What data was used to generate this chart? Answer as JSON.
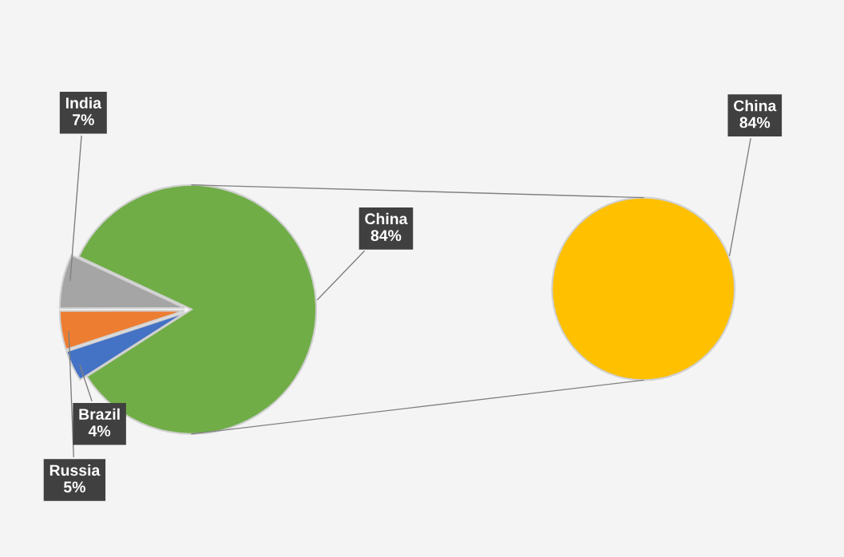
{
  "chart_data": [
    {
      "type": "pie",
      "categories": [
        "India",
        "Russia",
        "Brazil",
        "China"
      ],
      "values": [
        7,
        5,
        4,
        84
      ],
      "value_labels": [
        "7%",
        "5%",
        "4%",
        "84%"
      ],
      "colors": [
        "#a5a5a5",
        "#ed7d31",
        "#4472c4",
        "#70ad47"
      ]
    },
    {
      "type": "pie",
      "categories": [
        "China"
      ],
      "values": [
        84
      ],
      "value_labels": [
        "84%"
      ],
      "colors": [
        "#ffc000"
      ]
    }
  ]
}
